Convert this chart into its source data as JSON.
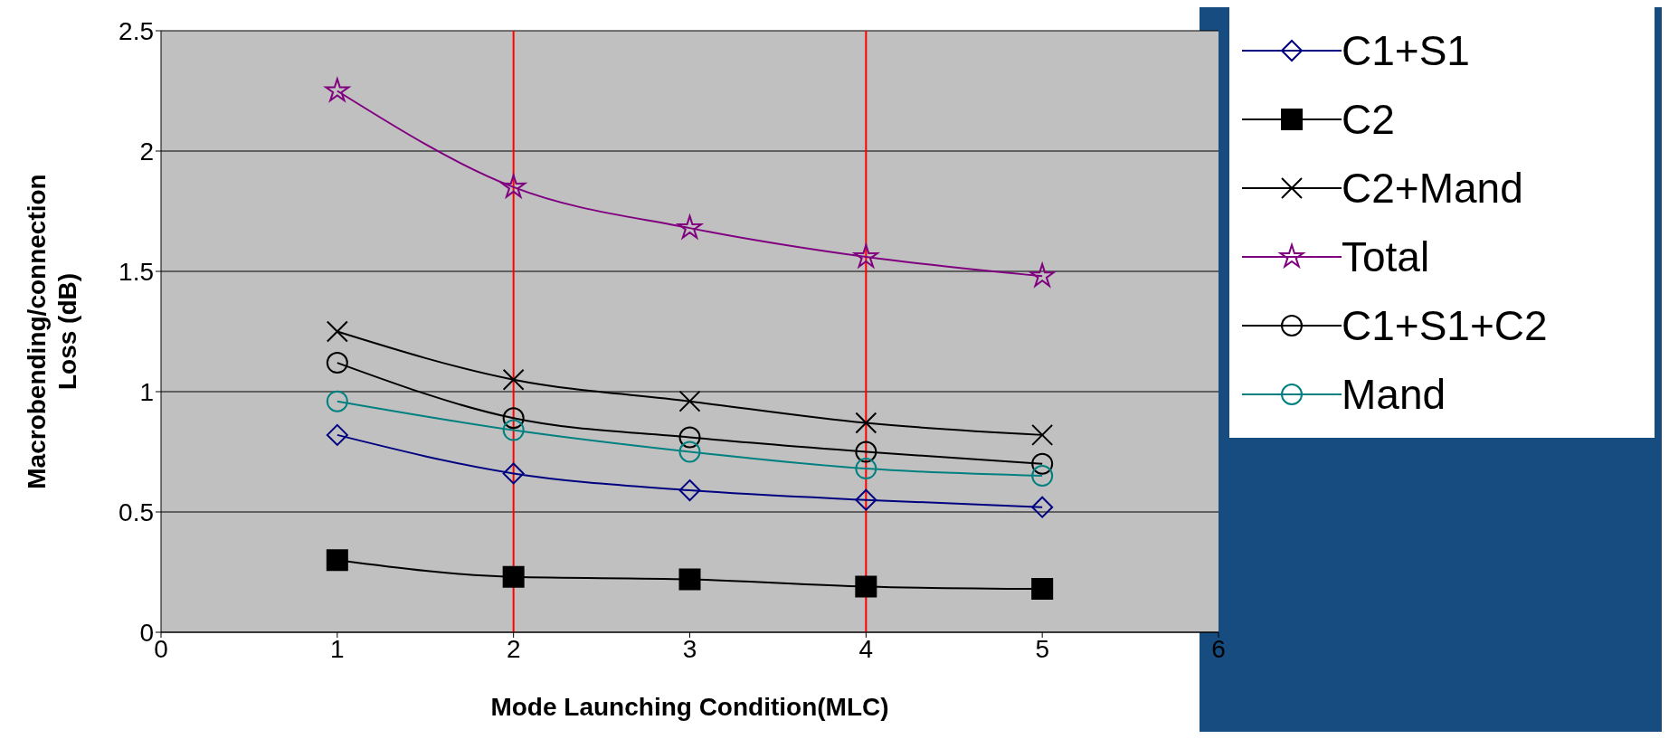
{
  "chart_data": {
    "type": "line",
    "xlabel": "Mode Launching Condition(MLC)",
    "ylabel": "Macrobending/connection Loss (dB)",
    "x": [
      1,
      2,
      3,
      4,
      5
    ],
    "xlim": [
      0,
      6
    ],
    "xticks": [
      0,
      1,
      2,
      3,
      4,
      5,
      6
    ],
    "ylim": [
      0,
      2.5
    ],
    "yticks": [
      0,
      0.5,
      1,
      1.5,
      2,
      2.5
    ],
    "grid": "y",
    "legend": "right",
    "line_style": "solid",
    "series": [
      {
        "name": "C1+S1",
        "color": "#000080",
        "marker": "diamond",
        "values": [
          0.82,
          0.66,
          0.59,
          0.55,
          0.52
        ]
      },
      {
        "name": "C2",
        "color": "#000000",
        "marker": "square",
        "values": [
          0.3,
          0.23,
          0.22,
          0.19,
          0.18
        ]
      },
      {
        "name": "C2+Mand",
        "color": "#000000",
        "marker": "cross",
        "values": [
          1.25,
          1.05,
          0.96,
          0.87,
          0.82
        ]
      },
      {
        "name": "Total",
        "color": "#800080",
        "marker": "star",
        "values": [
          2.25,
          1.85,
          1.68,
          1.56,
          1.48
        ]
      },
      {
        "name": "C1+S1+C2",
        "color": "#000000",
        "marker": "circle",
        "values": [
          1.12,
          0.89,
          0.81,
          0.75,
          0.7
        ]
      },
      {
        "name": "Mand",
        "color": "#008080",
        "marker": "circle",
        "values": [
          0.96,
          0.84,
          0.75,
          0.68,
          0.65
        ]
      }
    ],
    "ref_lines": [
      {
        "axis": "x",
        "value": 2,
        "color": "#ff0000"
      },
      {
        "axis": "x",
        "value": 4,
        "color": "#ff0000"
      }
    ]
  }
}
